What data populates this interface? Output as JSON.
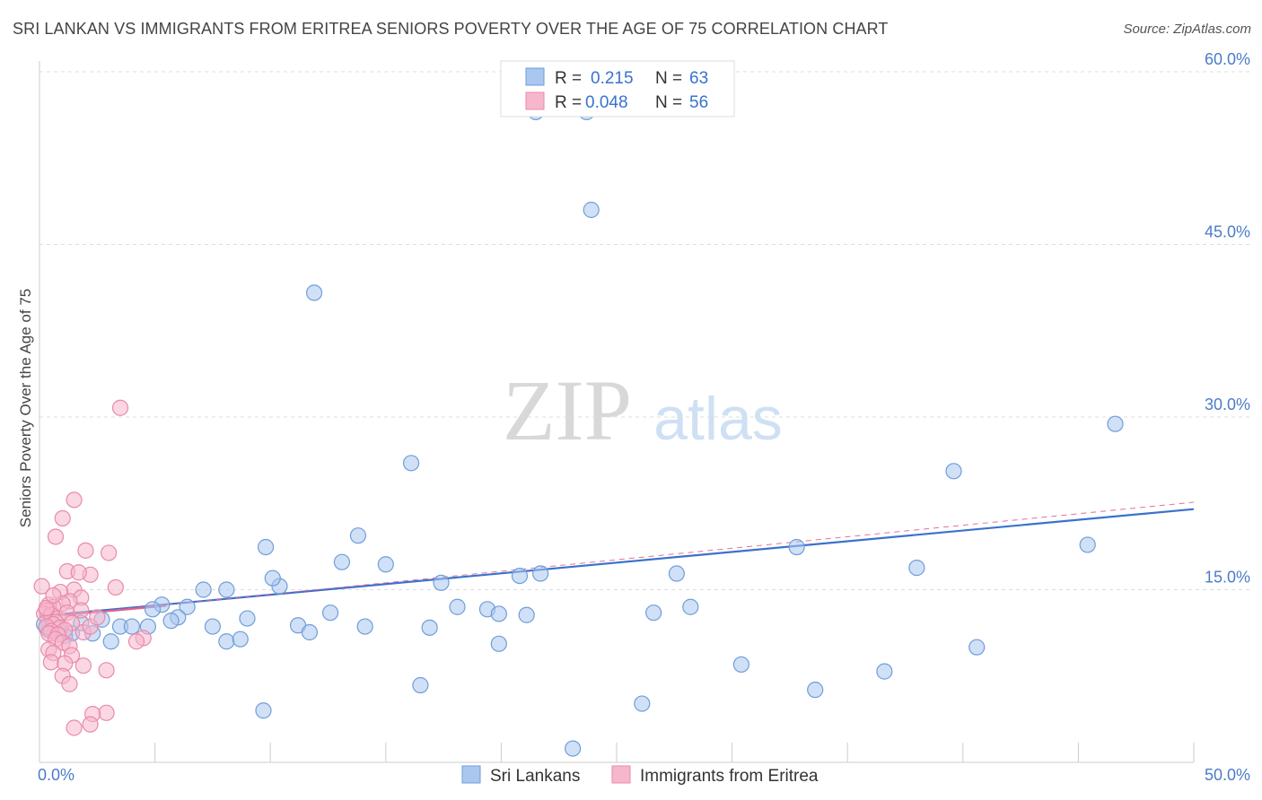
{
  "header": {
    "title": "SRI LANKAN VS IMMIGRANTS FROM ERITREA SENIORS POVERTY OVER THE AGE OF 75 CORRELATION CHART",
    "source": "Source: ZipAtlas.com"
  },
  "watermark": {
    "zip": "ZIP",
    "atlas": "atlas"
  },
  "colors": {
    "blue_fill": "#aac7f0",
    "blue_stroke": "#6f9ed8",
    "blue_line": "#3a72cc",
    "pink_fill": "#f6b7cc",
    "pink_stroke": "#e98aa9",
    "pink_line": "#e0608c",
    "tick_text": "#4a7cc9",
    "grid": "#dddddd"
  },
  "stats_legend": {
    "rows": [
      {
        "r_label": "R =",
        "r_value": "0.215",
        "n_label": "N =",
        "n_value": "63"
      },
      {
        "r_label": "R =",
        "r_value": "0.048",
        "n_label": "N =",
        "n_value": "56"
      }
    ]
  },
  "chart_data": {
    "type": "scatter",
    "title": "SRI LANKAN VS IMMIGRANTS FROM ERITREA SENIORS POVERTY OVER THE AGE OF 75 CORRELATION CHART",
    "xlabel": "",
    "ylabel": "Seniors Poverty Over the Age of 75",
    "xlim": [
      0,
      50
    ],
    "ylim": [
      0,
      60
    ],
    "x_tick_labels": [
      {
        "value": 0,
        "label": "0.0%"
      },
      {
        "value": 50,
        "label": "50.0%"
      }
    ],
    "y_tick_labels": [
      {
        "value": 15,
        "label": "15.0%"
      },
      {
        "value": 30,
        "label": "30.0%"
      },
      {
        "value": 45,
        "label": "45.0%"
      },
      {
        "value": 60,
        "label": "60.0%"
      }
    ],
    "legend_position": "top-center",
    "series": [
      {
        "name": "Sri Lankans",
        "r": 0.215,
        "n": 63,
        "trend": {
          "x0": 0,
          "y0": 12.7,
          "x1": 50,
          "y1": 22.0
        },
        "points": [
          [
            21.5,
            56.5
          ],
          [
            23.7,
            56.5
          ],
          [
            23.9,
            48.0
          ],
          [
            11.9,
            40.8
          ],
          [
            46.6,
            29.4
          ],
          [
            16.1,
            26.0
          ],
          [
            39.6,
            25.3
          ],
          [
            13.8,
            19.7
          ],
          [
            9.8,
            18.7
          ],
          [
            45.4,
            18.9
          ],
          [
            32.8,
            18.7
          ],
          [
            13.1,
            17.4
          ],
          [
            15.0,
            17.2
          ],
          [
            38.0,
            16.9
          ],
          [
            10.4,
            15.3
          ],
          [
            17.4,
            15.6
          ],
          [
            20.8,
            16.2
          ],
          [
            21.7,
            16.4
          ],
          [
            27.6,
            16.4
          ],
          [
            10.1,
            16.0
          ],
          [
            7.1,
            15.0
          ],
          [
            8.1,
            15.0
          ],
          [
            5.3,
            13.7
          ],
          [
            6.4,
            13.5
          ],
          [
            4.9,
            13.3
          ],
          [
            18.1,
            13.5
          ],
          [
            28.2,
            13.5
          ],
          [
            19.4,
            13.3
          ],
          [
            12.6,
            13.0
          ],
          [
            26.6,
            13.0
          ],
          [
            21.1,
            12.8
          ],
          [
            19.9,
            12.9
          ],
          [
            6.0,
            12.6
          ],
          [
            9.0,
            12.5
          ],
          [
            5.7,
            12.3
          ],
          [
            2.7,
            12.4
          ],
          [
            1.8,
            12.1
          ],
          [
            3.5,
            11.8
          ],
          [
            4.0,
            11.8
          ],
          [
            4.7,
            11.8
          ],
          [
            7.5,
            11.8
          ],
          [
            11.2,
            11.9
          ],
          [
            14.1,
            11.8
          ],
          [
            16.9,
            11.7
          ],
          [
            11.7,
            11.3
          ],
          [
            2.3,
            11.2
          ],
          [
            1.1,
            11.0
          ],
          [
            0.4,
            11.5
          ],
          [
            1.4,
            11.2
          ],
          [
            0.8,
            11.6
          ],
          [
            0.3,
            11.7
          ],
          [
            0.2,
            12.0
          ],
          [
            3.1,
            10.5
          ],
          [
            8.1,
            10.5
          ],
          [
            8.7,
            10.7
          ],
          [
            19.9,
            10.3
          ],
          [
            40.6,
            10.0
          ],
          [
            30.4,
            8.5
          ],
          [
            36.6,
            7.9
          ],
          [
            16.5,
            6.7
          ],
          [
            33.6,
            6.3
          ],
          [
            26.1,
            5.1
          ],
          [
            9.7,
            4.5
          ],
          [
            23.1,
            1.2
          ]
        ]
      },
      {
        "name": "Immigrants from Eritrea",
        "r": 0.048,
        "n": 56,
        "trend": {
          "x0": 0,
          "y0": 12.6,
          "x1": 50,
          "y1": 22.6
        },
        "points": [
          [
            3.5,
            30.8
          ],
          [
            1.5,
            22.8
          ],
          [
            1.0,
            21.2
          ],
          [
            0.7,
            19.6
          ],
          [
            2.0,
            18.4
          ],
          [
            3.0,
            18.2
          ],
          [
            2.2,
            16.3
          ],
          [
            1.2,
            16.6
          ],
          [
            1.7,
            16.5
          ],
          [
            0.1,
            15.3
          ],
          [
            1.5,
            15.0
          ],
          [
            3.3,
            15.2
          ],
          [
            0.9,
            14.8
          ],
          [
            1.8,
            14.3
          ],
          [
            1.3,
            14.0
          ],
          [
            1.0,
            13.8
          ],
          [
            0.4,
            13.7
          ],
          [
            0.6,
            13.5
          ],
          [
            0.3,
            13.2
          ],
          [
            0.2,
            12.9
          ],
          [
            0.5,
            12.8
          ],
          [
            0.8,
            12.5
          ],
          [
            1.2,
            13.0
          ],
          [
            0.7,
            12.2
          ],
          [
            1.4,
            12.1
          ],
          [
            0.6,
            12.0
          ],
          [
            0.3,
            11.8
          ],
          [
            0.9,
            11.7
          ],
          [
            1.1,
            11.5
          ],
          [
            0.5,
            11.4
          ],
          [
            0.4,
            11.2
          ],
          [
            0.8,
            11.1
          ],
          [
            1.9,
            11.3
          ],
          [
            2.2,
            11.8
          ],
          [
            0.7,
            10.7
          ],
          [
            1.0,
            10.4
          ],
          [
            1.3,
            10.1
          ],
          [
            0.4,
            9.8
          ],
          [
            0.6,
            9.5
          ],
          [
            1.4,
            9.3
          ],
          [
            4.5,
            10.8
          ],
          [
            4.2,
            10.5
          ],
          [
            0.5,
            8.7
          ],
          [
            1.1,
            8.6
          ],
          [
            1.9,
            8.4
          ],
          [
            2.9,
            8.0
          ],
          [
            1.0,
            7.5
          ],
          [
            1.3,
            6.8
          ],
          [
            2.9,
            4.3
          ],
          [
            2.3,
            4.2
          ],
          [
            2.2,
            3.3
          ],
          [
            1.5,
            3.0
          ],
          [
            0.3,
            13.4
          ],
          [
            0.6,
            14.5
          ],
          [
            1.8,
            13.2
          ],
          [
            2.5,
            12.6
          ]
        ]
      }
    ]
  }
}
